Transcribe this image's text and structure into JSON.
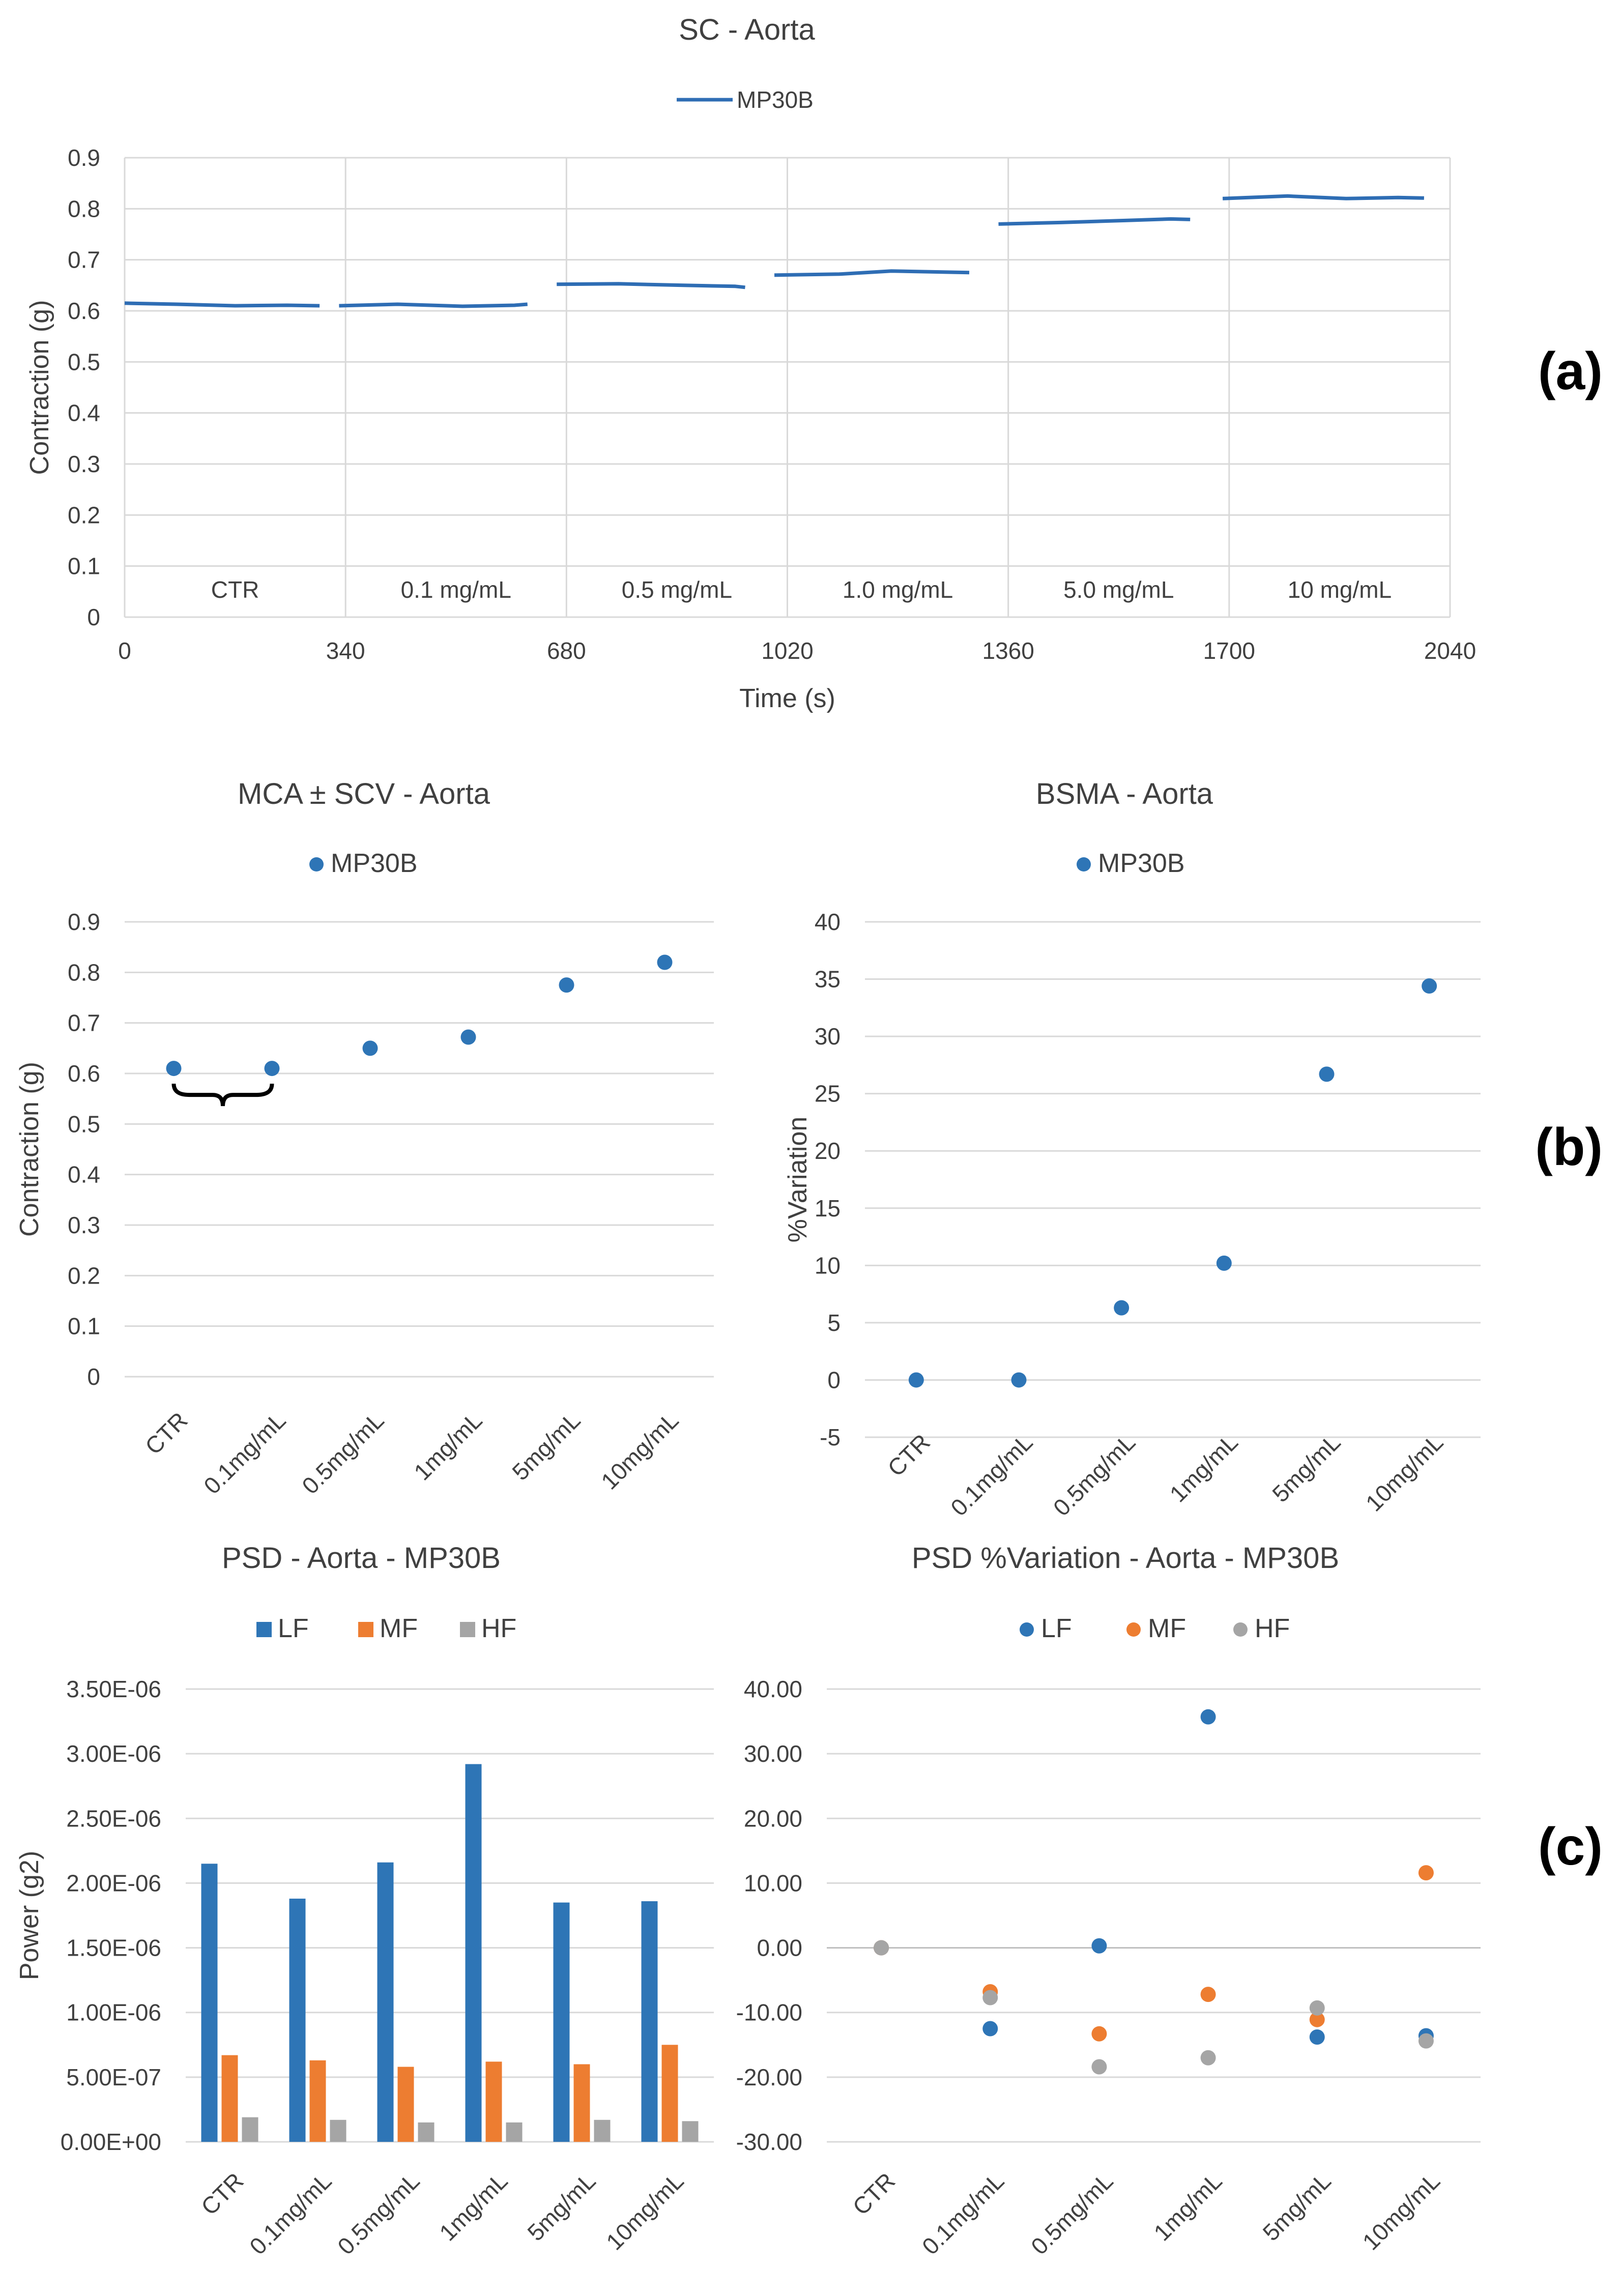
{
  "colors": {
    "blue": "#2E75B6",
    "lineBlue": "#2E6DB4",
    "orange": "#ED7D31",
    "gray": "#A5A5A5",
    "grid": "#D9D9D9",
    "text": "#404040"
  },
  "panel_labels": {
    "a": "(a)",
    "b": "(b)",
    "c": "(c)"
  },
  "chart_data": [
    {
      "id": "a",
      "type": "line",
      "title": "SC - Aorta",
      "legend": [
        "MP30B"
      ],
      "xlabel": "Time (s)",
      "ylabel": "Contraction (g)",
      "xlim": [
        0,
        2040
      ],
      "ylim": [
        0,
        0.9
      ],
      "xticks": [
        0,
        340,
        680,
        1020,
        1360,
        1700,
        2040
      ],
      "yticks": [
        0,
        0.1,
        0.2,
        0.3,
        0.4,
        0.5,
        0.6,
        0.7,
        0.8,
        0.9
      ],
      "segment_labels": [
        "CTR",
        "0.1 mg/mL",
        "0.5 mg/mL",
        "1.0 mg/mL",
        "5.0 mg/mL",
        "10 mg/mL"
      ],
      "segments": [
        {
          "x": [
            0,
            80,
            170,
            250,
            300
          ],
          "y": [
            0.615,
            0.613,
            0.61,
            0.611,
            0.61
          ]
        },
        {
          "x": [
            330,
            420,
            520,
            600,
            620
          ],
          "y": [
            0.61,
            0.613,
            0.609,
            0.611,
            0.613
          ]
        },
        {
          "x": [
            665,
            760,
            860,
            940,
            955
          ],
          "y": [
            0.652,
            0.653,
            0.65,
            0.648,
            0.646
          ]
        },
        {
          "x": [
            1000,
            1100,
            1180,
            1260,
            1300
          ],
          "y": [
            0.67,
            0.672,
            0.678,
            0.676,
            0.675
          ]
        },
        {
          "x": [
            1345,
            1440,
            1540,
            1610,
            1640
          ],
          "y": [
            0.77,
            0.773,
            0.777,
            0.78,
            0.779
          ]
        },
        {
          "x": [
            1690,
            1790,
            1880,
            1960,
            2000
          ],
          "y": [
            0.82,
            0.825,
            0.82,
            0.822,
            0.821
          ]
        }
      ]
    },
    {
      "id": "b1",
      "type": "scatter",
      "title": "MCA ± SCV  - Aorta",
      "legend": [
        "MP30B"
      ],
      "xlabel": "",
      "ylabel": "Contraction (g)",
      "categories": [
        "CTR",
        "0.1mg/mL",
        "0.5mg/mL",
        "1mg/mL",
        "5mg/mL",
        "10mg/mL"
      ],
      "series": [
        {
          "name": "MP30B",
          "values": [
            0.61,
            0.61,
            0.65,
            0.672,
            0.775,
            0.82
          ]
        }
      ],
      "ylim": [
        0,
        0.9
      ],
      "yticks": [
        0,
        0.1,
        0.2,
        0.3,
        0.4,
        0.5,
        0.6,
        0.7,
        0.8,
        0.9
      ]
    },
    {
      "id": "b2",
      "type": "scatter",
      "title": "BSMA - Aorta",
      "legend": [
        "MP30B"
      ],
      "xlabel": "",
      "ylabel": "%Variation",
      "categories": [
        "CTR",
        "0.1mg/mL",
        "0.5mg/mL",
        "1mg/mL",
        "5mg/mL",
        "10mg/mL"
      ],
      "series": [
        {
          "name": "MP30B",
          "values": [
            0,
            0,
            6.3,
            10.2,
            26.7,
            34.4
          ]
        }
      ],
      "ylim": [
        -5,
        40
      ],
      "yticks": [
        -5,
        0,
        5,
        10,
        15,
        20,
        25,
        30,
        35,
        40
      ]
    },
    {
      "id": "c1",
      "type": "bar",
      "title": "PSD - Aorta - MP30B",
      "legend": [
        "LF",
        "MF",
        "HF"
      ],
      "xlabel": "",
      "ylabel": "Power (g2)",
      "categories": [
        "CTR",
        "0.1mg/mL",
        "0.5mg/mL",
        "1mg/mL",
        "5mg/mL",
        "10mg/mL"
      ],
      "series": [
        {
          "name": "LF",
          "values": [
            2.15e-06,
            1.88e-06,
            2.16e-06,
            2.92e-06,
            1.85e-06,
            1.86e-06
          ]
        },
        {
          "name": "MF",
          "values": [
            6.7e-07,
            6.3e-07,
            5.8e-07,
            6.2e-07,
            6e-07,
            7.5e-07
          ]
        },
        {
          "name": "HF",
          "values": [
            1.9e-07,
            1.7e-07,
            1.5e-07,
            1.5e-07,
            1.7e-07,
            1.6e-07
          ]
        }
      ],
      "ylim": [
        0,
        3.5e-06
      ],
      "ytick_labels": [
        "0.00E+00",
        "5.00E-07",
        "1.00E-06",
        "1.50E-06",
        "2.00E-06",
        "2.50E-06",
        "3.00E-06",
        "3.50E-06"
      ]
    },
    {
      "id": "c2",
      "type": "scatter",
      "title": "PSD %Variation - Aorta - MP30B",
      "legend": [
        "LF",
        "MF",
        "HF"
      ],
      "xlabel": "",
      "ylabel": "",
      "categories": [
        "CTR",
        "0.1mg/mL",
        "0.5mg/mL",
        "1mg/mL",
        "5mg/mL",
        "10mg/mL"
      ],
      "series": [
        {
          "name": "LF",
          "values": [
            0,
            -12.5,
            0.3,
            35.7,
            -13.8,
            -13.6
          ]
        },
        {
          "name": "MF",
          "values": [
            0,
            -6.8,
            -13.3,
            -7.2,
            -11.1,
            11.6
          ]
        },
        {
          "name": "HF",
          "values": [
            0,
            -7.7,
            -18.4,
            -17.0,
            -9.3,
            -14.4
          ]
        }
      ],
      "ylim": [
        -30,
        40
      ],
      "ytick_labels": [
        "-30.00",
        "-20.00",
        "-10.00",
        "0.00",
        "10.00",
        "20.00",
        "30.00",
        "40.00"
      ]
    }
  ]
}
